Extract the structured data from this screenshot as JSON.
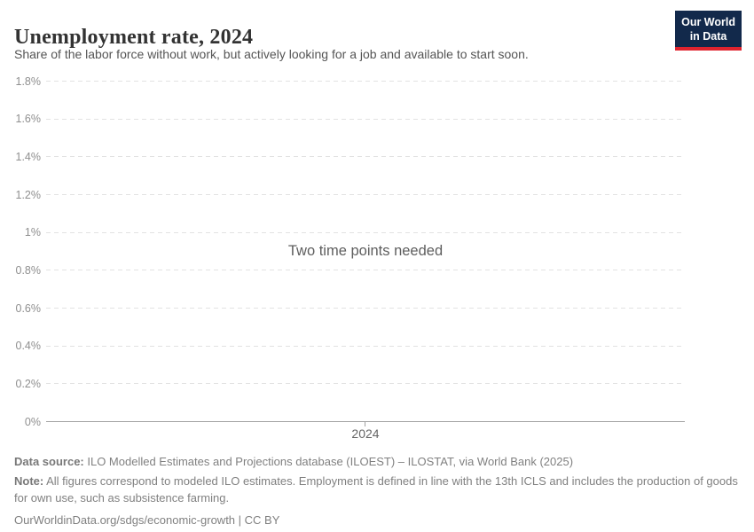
{
  "header": {
    "title": "Unemployment rate, 2024",
    "subtitle": "Share of the labor force without work, but actively looking for a job and available to start soon.",
    "logo": {
      "line1": "Our World",
      "line2": "in Data",
      "bg_color": "#12294b",
      "accent_color": "#e0232e"
    }
  },
  "chart_data": {
    "type": "line",
    "title": "Unemployment rate, 2024",
    "xlabel": "",
    "ylabel": "",
    "ylim": [
      0,
      1.8
    ],
    "ytick_step": 0.2,
    "ytick_labels": [
      "0%",
      "0.2%",
      "0.4%",
      "0.6%",
      "0.8%",
      "1%",
      "1.2%",
      "1.4%",
      "1.6%",
      "1.8%"
    ],
    "xtick_labels": [
      "2024"
    ],
    "series": [],
    "grid": "horizontal-dashed",
    "legend": "none",
    "empty_state_message": "Two time points needed"
  },
  "footer": {
    "data_source_label": "Data source:",
    "data_source_text": " ILO Modelled Estimates and Projections database (ILOEST) – ILOSTAT, via World Bank (2025)",
    "note_label": "Note:",
    "note_text": " All figures correspond to modeled ILO estimates. Employment is defined in line with the 13th ICLS and includes the production of goods for own use, such as subsistence farming.",
    "citation": "OurWorldinData.org/sdgs/economic-growth | CC BY"
  }
}
